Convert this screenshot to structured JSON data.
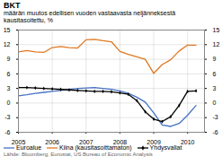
{
  "chart_data": {
    "type": "line",
    "title": "BKT",
    "subtitle": "määrän muutos edellisen vuoden vastaavasta neljänneksestä\nkausitasoitettu, %",
    "annotations": [
      "Lähde: Bloomberg, Eurostat, US Bureau of Economic Analysis"
    ],
    "x": [
      2005.0,
      2005.25,
      2005.5,
      2005.75,
      2006.0,
      2006.25,
      2006.5,
      2006.75,
      2007.0,
      2007.25,
      2007.5,
      2007.75,
      2008.0,
      2008.25,
      2008.5,
      2008.75,
      2009.0,
      2009.25,
      2009.5,
      2009.75,
      2010.0,
      2010.25
    ],
    "series": [
      {
        "name": "Euroalue",
        "color": "#4472C4",
        "values": [
          1.5,
          1.7,
          2.0,
          2.2,
          2.4,
          2.6,
          2.8,
          3.0,
          3.1,
          3.2,
          3.0,
          2.8,
          2.5,
          2.0,
          1.2,
          0.2,
          -2.0,
          -4.5,
          -4.8,
          -4.2,
          -2.5,
          -0.5
        ]
      },
      {
        "name": "Kiina (kausitasoittamaton)",
        "color": "#E07820",
        "values": [
          10.5,
          10.8,
          10.5,
          10.4,
          11.4,
          11.6,
          11.4,
          11.3,
          13.0,
          13.1,
          12.8,
          12.6,
          10.6,
          10.0,
          9.5,
          9.0,
          6.1,
          7.9,
          8.9,
          10.7,
          11.9,
          11.9
        ]
      },
      {
        "name": "Yhdysvallat",
        "color": "#000000",
        "marker": "diamond",
        "values": [
          3.2,
          3.2,
          3.1,
          3.0,
          2.9,
          2.8,
          2.7,
          2.6,
          2.5,
          2.4,
          2.4,
          2.3,
          2.1,
          1.8,
          0.5,
          -1.8,
          -3.3,
          -3.8,
          -2.8,
          -0.5,
          2.4,
          2.5
        ]
      }
    ],
    "xlim": [
      2005.0,
      2010.5
    ],
    "xticks": [
      2005,
      2006,
      2007,
      2008,
      2009,
      2010
    ],
    "ylim": [
      -6,
      15
    ],
    "yticks": [
      -6,
      -3,
      0,
      3,
      6,
      9,
      12,
      15
    ],
    "grid": true,
    "legend": "bottom"
  }
}
